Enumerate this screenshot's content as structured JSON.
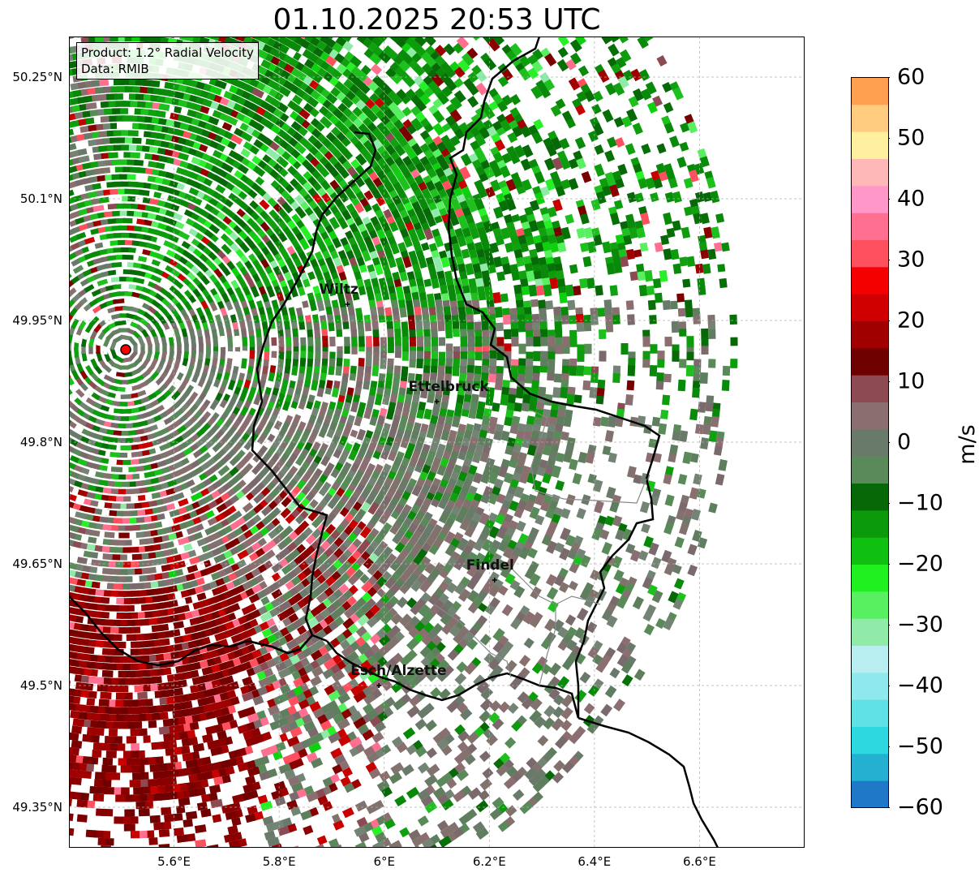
{
  "title": "01.10.2025 20:53 UTC",
  "info": {
    "product": "Product: 1.2° Radial Velocity",
    "source": "Data: RMIB"
  },
  "map": {
    "lon_range": [
      5.4,
      6.8
    ],
    "lat_range": [
      49.3,
      50.3
    ],
    "lat_ticks": [
      {
        "value": 50.25,
        "label": "50.25°N"
      },
      {
        "value": 50.1,
        "label": "50.1°N"
      },
      {
        "value": 49.95,
        "label": "49.95°N"
      },
      {
        "value": 49.8,
        "label": "49.8°N"
      },
      {
        "value": 49.65,
        "label": "49.65°N"
      },
      {
        "value": 49.5,
        "label": "49.5°N"
      },
      {
        "value": 49.35,
        "label": "49.35°N"
      }
    ],
    "lon_ticks": [
      {
        "value": 5.6,
        "label": "5.6°E"
      },
      {
        "value": 5.8,
        "label": "5.8°E"
      },
      {
        "value": 6.0,
        "label": "6°E"
      },
      {
        "value": 6.2,
        "label": "6.2°E"
      },
      {
        "value": 6.4,
        "label": "6.4°E"
      },
      {
        "value": 6.6,
        "label": "6.6°E"
      }
    ],
    "grid": true,
    "radar_site": {
      "lon": 5.505,
      "lat": 49.915
    },
    "cities": [
      {
        "name": "Wiltz",
        "lon": 5.93,
        "lat": 49.97
      },
      {
        "name": "Ettelbruck",
        "lon": 6.1,
        "lat": 49.85
      },
      {
        "name": "Findel",
        "lon": 6.21,
        "lat": 49.63
      },
      {
        "name": "Esch/Alzette",
        "lon": 5.99,
        "lat": 49.5
      }
    ]
  },
  "colorbar": {
    "unit": "m/s",
    "range": [
      -60,
      60
    ],
    "ticks": [
      {
        "value": 60,
        "label": "60"
      },
      {
        "value": 50,
        "label": "50"
      },
      {
        "value": 40,
        "label": "40"
      },
      {
        "value": 30,
        "label": "30"
      },
      {
        "value": 20,
        "label": "20"
      },
      {
        "value": 10,
        "label": "10"
      },
      {
        "value": 0,
        "label": "0"
      },
      {
        "value": -10,
        "label": "−10"
      },
      {
        "value": -20,
        "label": "−20"
      },
      {
        "value": -30,
        "label": "−30"
      },
      {
        "value": -40,
        "label": "−40"
      },
      {
        "value": -50,
        "label": "−50"
      },
      {
        "value": -60,
        "label": "−60"
      }
    ],
    "colors": [
      "#1f78c8",
      "#24b0d0",
      "#2ed8e0",
      "#5ee0e4",
      "#8ee8ec",
      "#b8eef0",
      "#90eaa8",
      "#58f060",
      "#20f020",
      "#10c010",
      "#0a9a0a",
      "#066806",
      "#5a8a5a",
      "#6a7a6a",
      "#8a6e70",
      "#8c4a52",
      "#6e0000",
      "#a00000",
      "#d00000",
      "#f40000",
      "#ff5060",
      "#ff7090",
      "#ff98c8",
      "#ffb8b8",
      "#fff0a0",
      "#ffcc80",
      "#ffa050"
    ]
  },
  "legend_labels": {
    "unit": "m/s"
  }
}
